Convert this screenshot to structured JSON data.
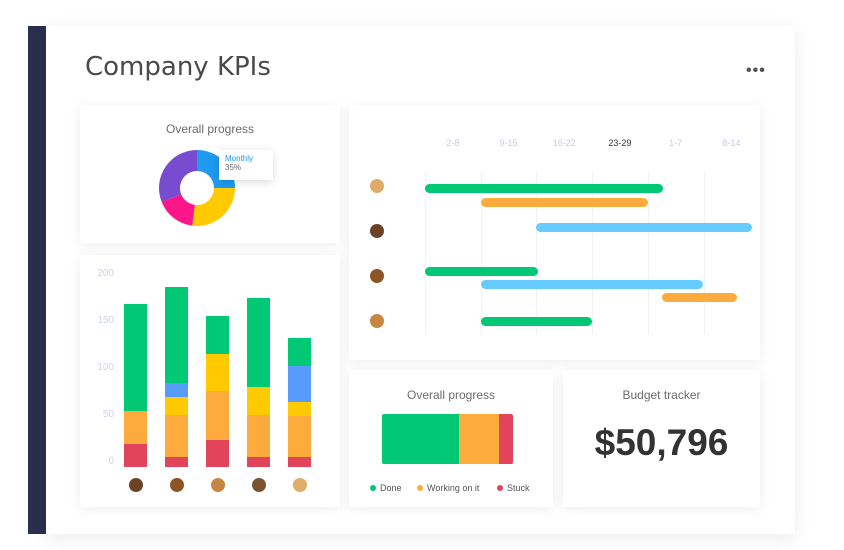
{
  "header": {
    "title": "Company KPIs",
    "menu_icon": "more-horizontal-icon"
  },
  "donut": {
    "title": "Overall progress",
    "tooltip_label": "Monthly",
    "tooltip_value": "35%",
    "segments": [
      {
        "color": "#1e9bf0",
        "pct": 25
      },
      {
        "color": "#ffcb00",
        "pct": 27
      },
      {
        "color": "#ff158a",
        "pct": 17
      },
      {
        "color": "#784bd1",
        "pct": 31
      }
    ]
  },
  "chart_data": {
    "type": "bar",
    "stacked": true,
    "ylim": [
      0,
      200
    ],
    "yticks": [
      "200",
      "150",
      "100",
      "50",
      "0"
    ],
    "categories": [
      "person-1",
      "person-2",
      "person-3",
      "person-4",
      "person-5"
    ],
    "colors": {
      "red": "#e2445c",
      "orange": "#fdab3d",
      "yellow": "#ffcb00",
      "blue": "#579bfc",
      "green": "#00c875"
    },
    "stacks": [
      [
        [
          "red",
          24
        ],
        [
          "orange",
          34
        ],
        [
          "green",
          112
        ]
      ],
      [
        [
          "red",
          10
        ],
        [
          "orange",
          44
        ],
        [
          "yellow",
          19
        ],
        [
          "blue",
          14
        ],
        [
          "green",
          101
        ]
      ],
      [
        [
          "red",
          28
        ],
        [
          "orange",
          51
        ],
        [
          "yellow",
          39
        ],
        [
          "green",
          39
        ]
      ],
      [
        [
          "red",
          10
        ],
        [
          "orange",
          44
        ],
        [
          "yellow",
          29
        ],
        [
          "green",
          93
        ]
      ],
      [
        [
          "red",
          10
        ],
        [
          "orange",
          43
        ],
        [
          "yellow",
          15
        ],
        [
          "blue",
          37
        ],
        [
          "green",
          29
        ]
      ]
    ]
  },
  "gantt": {
    "weeks": [
      "2-8",
      "9-15",
      "16-22",
      "23-29",
      "1-7",
      "8-14"
    ],
    "current_week": "23-29",
    "rows": [
      {
        "bars": [
          {
            "start": 0,
            "end": 4.27,
            "color": "#00c875"
          },
          {
            "start": 1,
            "end": 4,
            "color": "#fdab3d"
          }
        ]
      },
      {
        "bars": [
          {
            "start": 2,
            "end": 5.87,
            "color": "#66ccff"
          }
        ]
      },
      {
        "bars": [
          {
            "start": 0,
            "end": 2.03,
            "color": "#00c875"
          },
          {
            "start": 1,
            "end": 5,
            "color": "#66ccff"
          },
          {
            "start": 4.25,
            "end": 5.6,
            "color": "#fdab3d"
          }
        ]
      },
      {
        "bars": [
          {
            "start": 1,
            "end": 3,
            "color": "#00c875"
          }
        ]
      }
    ]
  },
  "progress": {
    "title": "Overall progress",
    "segments": [
      {
        "label": "Done",
        "pct": 59,
        "color": "#00c875"
      },
      {
        "label": "Working on it",
        "pct": 30,
        "color": "#fdab3d"
      },
      {
        "label": "Stuck",
        "pct": 11,
        "color": "#e2445c"
      }
    ]
  },
  "budget": {
    "title": "Budget tracker",
    "value": "$50,796"
  }
}
